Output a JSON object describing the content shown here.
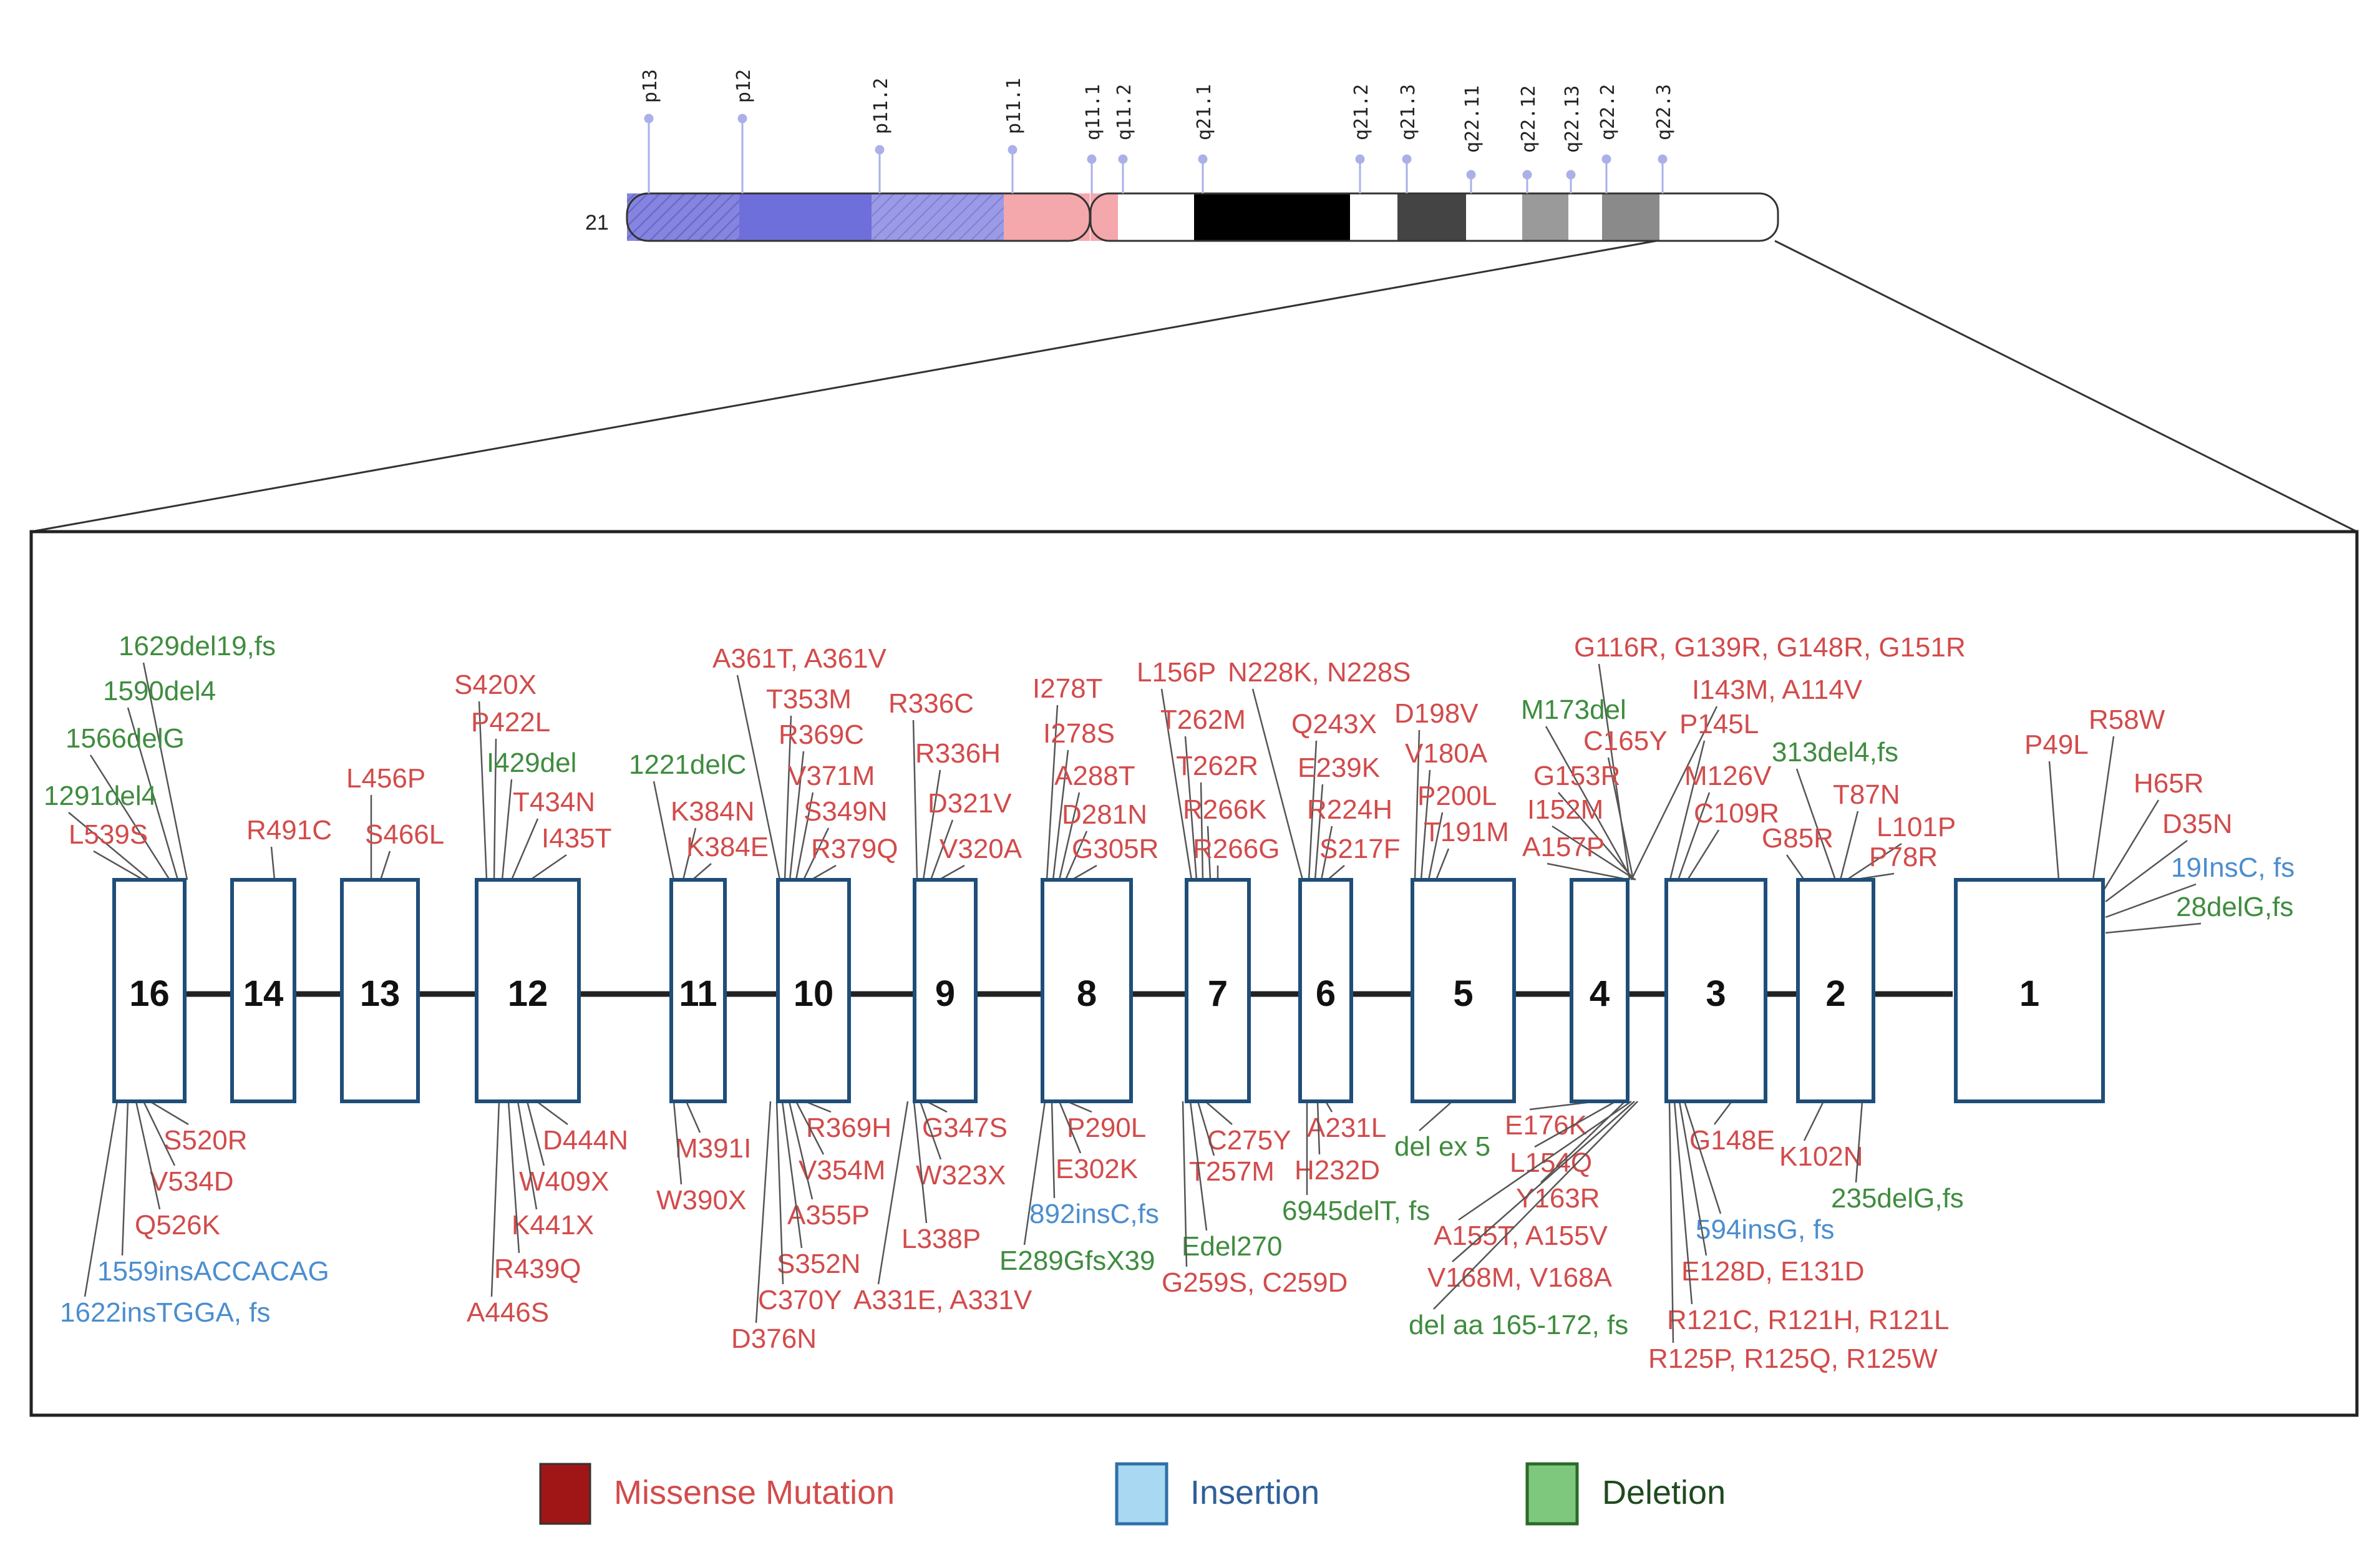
{
  "chromosome": {
    "number": "21",
    "bands": [
      "p13",
      "p12",
      "p11.2",
      "p11.1",
      "q11.1",
      "q11.2",
      "q21.1",
      "q21.2",
      "q21.3",
      "q22.11",
      "q22.12",
      "q22.13",
      "q22.2",
      "q22.3"
    ]
  },
  "exons": [
    "16",
    "14",
    "13",
    "12",
    "11",
    "10",
    "9",
    "8",
    "7",
    "6",
    "5",
    "4",
    "3",
    "2",
    "1"
  ],
  "mutations_top": {
    "e16": [
      {
        "t": "1629del19,fs",
        "c": "green"
      },
      {
        "t": "1590del4",
        "c": "green"
      },
      {
        "t": "1566delG",
        "c": "green"
      },
      {
        "t": "1291del4",
        "c": "green"
      },
      {
        "t": "L539S",
        "c": "red"
      }
    ],
    "e14": [
      {
        "t": "R491C",
        "c": "red"
      }
    ],
    "e13": [
      {
        "t": "L456P",
        "c": "red"
      },
      {
        "t": "S466L",
        "c": "red"
      }
    ],
    "e12": [
      {
        "t": "S420X",
        "c": "red"
      },
      {
        "t": "P422L",
        "c": "red"
      },
      {
        "t": "I429del",
        "c": "green"
      },
      {
        "t": "T434N",
        "c": "red"
      },
      {
        "t": "I435T",
        "c": "red"
      }
    ],
    "e11": [
      {
        "t": "1221delC",
        "c": "green"
      },
      {
        "t": "K384N",
        "c": "red"
      },
      {
        "t": "K384E",
        "c": "red"
      }
    ],
    "e10": [
      {
        "t": "A361T, A361V",
        "c": "red"
      },
      {
        "t": "T353M",
        "c": "red"
      },
      {
        "t": "R369C",
        "c": "red"
      },
      {
        "t": "V371M",
        "c": "red"
      },
      {
        "t": "S349N",
        "c": "red"
      },
      {
        "t": "R379Q",
        "c": "red"
      }
    ],
    "e9": [
      {
        "t": "R336C",
        "c": "red"
      },
      {
        "t": "R336H",
        "c": "red"
      },
      {
        "t": "D321V",
        "c": "red"
      },
      {
        "t": "V320A",
        "c": "red"
      }
    ],
    "e8": [
      {
        "t": "I278T",
        "c": "red"
      },
      {
        "t": "I278S",
        "c": "red"
      },
      {
        "t": "A288T",
        "c": "red"
      },
      {
        "t": "D281N",
        "c": "red"
      },
      {
        "t": "G305R",
        "c": "red"
      }
    ],
    "e7": [
      {
        "t": "L156P",
        "c": "red"
      },
      {
        "t": "T262M",
        "c": "red"
      },
      {
        "t": "T262R",
        "c": "red"
      },
      {
        "t": "R266K",
        "c": "red"
      },
      {
        "t": "R266G",
        "c": "red"
      }
    ],
    "e6": [
      {
        "t": "N228K, N228S",
        "c": "red"
      },
      {
        "t": "Q243X",
        "c": "red"
      },
      {
        "t": "E239K",
        "c": "red"
      },
      {
        "t": "R224H",
        "c": "red"
      },
      {
        "t": "S217F",
        "c": "red"
      }
    ],
    "e5": [
      {
        "t": "D198V",
        "c": "red"
      },
      {
        "t": "V180A",
        "c": "red"
      },
      {
        "t": "P200L",
        "c": "red"
      },
      {
        "t": "T191M",
        "c": "red"
      }
    ],
    "e4": [
      {
        "t": "G116R, G139R, G148R, G151R",
        "c": "red"
      },
      {
        "t": "I143M, A114V",
        "c": "red"
      },
      {
        "t": "M173del",
        "c": "green"
      },
      {
        "t": "C165Y",
        "c": "red"
      },
      {
        "t": "G153R",
        "c": "red"
      },
      {
        "t": "I152M",
        "c": "red"
      },
      {
        "t": "A157P",
        "c": "red"
      }
    ],
    "e3": [
      {
        "t": "P145L",
        "c": "red"
      },
      {
        "t": "M126V",
        "c": "red"
      },
      {
        "t": "C109R",
        "c": "red"
      }
    ],
    "e2": [
      {
        "t": "313del4,fs",
        "c": "green"
      },
      {
        "t": "T87N",
        "c": "red"
      },
      {
        "t": "L101P",
        "c": "red"
      },
      {
        "t": "G85R",
        "c": "red"
      },
      {
        "t": "P78R",
        "c": "red"
      }
    ],
    "e1": [
      {
        "t": "P49L",
        "c": "red"
      },
      {
        "t": "R58W",
        "c": "red"
      },
      {
        "t": "H65R",
        "c": "red"
      },
      {
        "t": "D35N",
        "c": "red"
      },
      {
        "t": "19InsC, fs",
        "c": "blue"
      },
      {
        "t": "28delG,fs",
        "c": "green"
      }
    ]
  },
  "mutations_bottom": {
    "e16": [
      {
        "t": "S520R",
        "c": "red"
      },
      {
        "t": "V534D",
        "c": "red"
      },
      {
        "t": "Q526K",
        "c": "red"
      },
      {
        "t": "1559insACCACAG",
        "c": "blue"
      },
      {
        "t": "1622insTGGA, fs",
        "c": "blue"
      }
    ],
    "e12": [
      {
        "t": "D444N",
        "c": "red"
      },
      {
        "t": "W409X",
        "c": "red"
      },
      {
        "t": "K441X",
        "c": "red"
      },
      {
        "t": "R439Q",
        "c": "red"
      },
      {
        "t": "A446S",
        "c": "red"
      }
    ],
    "e11": [
      {
        "t": "M391I",
        "c": "red"
      },
      {
        "t": "W390X",
        "c": "red"
      }
    ],
    "e10": [
      {
        "t": "R369H",
        "c": "red"
      },
      {
        "t": "V354M",
        "c": "red"
      },
      {
        "t": "A355P",
        "c": "red"
      },
      {
        "t": "S352N",
        "c": "red"
      },
      {
        "t": "C370Y",
        "c": "red"
      },
      {
        "t": "D376N",
        "c": "red"
      }
    ],
    "e9": [
      {
        "t": "G347S",
        "c": "red"
      },
      {
        "t": "W323X",
        "c": "red"
      },
      {
        "t": "L338P",
        "c": "red"
      },
      {
        "t": "A331E, A331V",
        "c": "red"
      }
    ],
    "e8": [
      {
        "t": "P290L",
        "c": "red"
      },
      {
        "t": "E302K",
        "c": "red"
      },
      {
        "t": "892insC,fs",
        "c": "blue"
      },
      {
        "t": "E289GfsX39",
        "c": "green"
      }
    ],
    "e7": [
      {
        "t": "C275Y",
        "c": "red"
      },
      {
        "t": "T257M",
        "c": "red"
      },
      {
        "t": "Edel270",
        "c": "green"
      },
      {
        "t": "G259S, C259D",
        "c": "red"
      }
    ],
    "e6": [
      {
        "t": "A231L",
        "c": "red"
      },
      {
        "t": "H232D",
        "c": "red"
      },
      {
        "t": "6945delT, fs",
        "c": "green"
      }
    ],
    "e5": [
      {
        "t": "del ex 5",
        "c": "green"
      }
    ],
    "e4": [
      {
        "t": "E176K",
        "c": "red"
      },
      {
        "t": "L154Q",
        "c": "red"
      },
      {
        "t": "Y163R",
        "c": "red"
      },
      {
        "t": "A155T, A155V",
        "c": "red"
      },
      {
        "t": "V168M, V168A",
        "c": "red"
      },
      {
        "t": "del aa 165-172, fs",
        "c": "green"
      }
    ],
    "e3": [
      {
        "t": "G148E",
        "c": "red"
      },
      {
        "t": "594insG, fs",
        "c": "blue"
      },
      {
        "t": "E128D, E131D",
        "c": "red"
      },
      {
        "t": "R121C, R121H, R121L",
        "c": "red"
      },
      {
        "t": "R125P, R125Q, R125W",
        "c": "red"
      }
    ],
    "e2": [
      {
        "t": "K102N",
        "c": "red"
      },
      {
        "t": "235delG,fs",
        "c": "green"
      }
    ]
  },
  "legend": {
    "missense": "Missense Mutation",
    "insertion": "Insertion",
    "deletion": "Deletion"
  },
  "colors": {
    "missense_text": "#d24b4b",
    "insertion_text": "#4b8ecf",
    "deletion_text": "#3f8c3f",
    "missense_swatch": "#a01515",
    "insertion_swatch": "#a8d8f2",
    "deletion_swatch": "#7ec87e",
    "exon_border": "#1f4e79"
  }
}
